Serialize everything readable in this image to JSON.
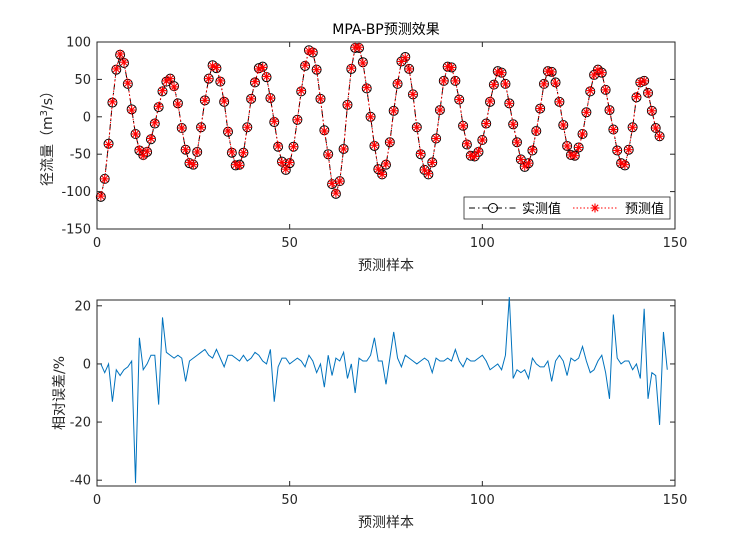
{
  "chart_data": [
    {
      "type": "line",
      "title": "MPA-BP预测效果",
      "xlabel": "预测样本",
      "ylabel": "径流量（m3/s）",
      "ylabel_parts": {
        "main": "径流量（m",
        "sup": "3",
        "end": "/s）"
      },
      "xlim": [
        0,
        150
      ],
      "ylim": [
        -150,
        100
      ],
      "xticks": [
        0,
        50,
        100,
        150
      ],
      "yticks": [
        -150,
        -100,
        -50,
        0,
        50,
        100
      ],
      "legend_position": "bottom-right",
      "series": [
        {
          "name": "实测值",
          "color": "#000000",
          "marker": "circle",
          "line": "dash-dot",
          "values": [
            -107,
            -83,
            -36,
            19,
            63,
            83,
            72,
            44,
            10,
            -23,
            -45,
            -51,
            -47,
            -30,
            -9,
            13,
            34,
            47,
            51,
            41,
            18,
            -15,
            -44,
            -62,
            -64,
            -47,
            -14,
            22,
            51,
            69,
            65,
            47,
            20,
            -20,
            -48,
            -65,
            -64,
            -48,
            -14,
            24,
            46,
            65,
            67,
            53,
            25,
            -7,
            -40,
            -60,
            -71,
            -62,
            -40,
            -4,
            34,
            68,
            89,
            86,
            63,
            24,
            -18,
            -50,
            -90,
            -103,
            -86,
            -43,
            16,
            64,
            92,
            92,
            73,
            38,
            0,
            -39,
            -70,
            -77,
            -64,
            -34,
            8,
            44,
            74,
            80,
            64,
            30,
            -14,
            -50,
            -71,
            -77,
            -61,
            -29,
            9,
            48,
            67,
            66,
            48,
            23,
            -12,
            -37,
            -52,
            -53,
            -47,
            -31,
            -9,
            20,
            43,
            61,
            59,
            44,
            18,
            -10,
            -34,
            -57,
            -67,
            -62,
            -45,
            -19,
            11,
            44,
            61,
            60,
            46,
            20,
            -11,
            -39,
            -51,
            -52,
            -41,
            -23,
            6,
            34,
            56,
            63,
            59,
            36,
            9,
            -17,
            -45,
            -62,
            -65,
            -44,
            -14,
            26,
            46,
            48,
            32,
            8,
            -15,
            -26
          ],
          "markers_every": 1
        },
        {
          "name": "预测值",
          "color": "#ff0000",
          "marker": "asterisk",
          "line": "dotted",
          "values": [
            -106,
            -83,
            -37,
            20,
            64,
            84,
            73,
            45,
            9,
            -23,
            -44,
            -52,
            -46,
            -29,
            -8,
            14,
            35,
            48,
            51,
            40,
            17,
            -15,
            -44,
            -61,
            -64,
            -47,
            -14,
            22,
            51,
            68,
            66,
            48,
            21,
            -19,
            -47,
            -64,
            -65,
            -48,
            -14,
            24,
            47,
            64,
            66,
            54,
            25,
            -6,
            -39,
            -61,
            -70,
            -61,
            -40,
            -4,
            35,
            69,
            88,
            87,
            63,
            24,
            -19,
            -51,
            -89,
            -102,
            -86,
            -43,
            16,
            65,
            93,
            93,
            72,
            39,
            0,
            -38,
            -70,
            -77,
            -63,
            -34,
            8,
            45,
            74,
            79,
            64,
            30,
            -14,
            -49,
            -71,
            -76,
            -61,
            -29,
            9,
            48,
            67,
            66,
            48,
            23,
            -12,
            -36,
            -52,
            -53,
            -46,
            -31,
            -9,
            21,
            43,
            60,
            59,
            44,
            18,
            -10,
            -34,
            -57,
            -66,
            -62,
            -44,
            -19,
            11,
            44,
            61,
            60,
            45,
            20,
            -11,
            -39,
            -51,
            -52,
            -41,
            -23,
            6,
            35,
            56,
            63,
            59,
            36,
            9,
            -17,
            -45,
            -62,
            -64,
            -44,
            -14,
            27,
            46,
            48,
            32,
            8,
            -15,
            -26
          ]
        }
      ]
    },
    {
      "type": "line",
      "title": "",
      "xlabel": "预测样本",
      "ylabel": "相对误差/%",
      "xlim": [
        0,
        150
      ],
      "ylim": [
        -42,
        22
      ],
      "xticks": [
        0,
        50,
        100,
        150
      ],
      "yticks": [
        -40,
        -20,
        0,
        20
      ],
      "series": [
        {
          "name": "",
          "color": "#0072bd",
          "values": [
            0,
            -3,
            0,
            -13,
            -2,
            -4,
            -2,
            -1,
            1,
            -41,
            9,
            -2,
            0,
            3,
            3,
            -14,
            16,
            4,
            3,
            2,
            3,
            2,
            -6,
            1,
            2,
            3,
            4,
            5,
            3,
            2,
            5,
            2,
            -1,
            3,
            3,
            2,
            1,
            3,
            1,
            2,
            4,
            3,
            1,
            0,
            5,
            -13,
            -1,
            2,
            2,
            0,
            1,
            2,
            1,
            -1,
            3,
            1,
            -3,
            0,
            -8,
            3,
            -4,
            2,
            1,
            4,
            -5,
            0,
            -10,
            2,
            1,
            1,
            3,
            9,
            1,
            1,
            -7,
            2,
            11,
            2,
            -1,
            3,
            2,
            1,
            0,
            1,
            2,
            1,
            -3,
            2,
            1,
            1,
            2,
            1,
            5,
            1,
            -1,
            2,
            1,
            1,
            2,
            3,
            1,
            -2,
            -1,
            0,
            -2,
            3,
            23,
            -5,
            -2,
            -3,
            -2,
            -5,
            2,
            0,
            -1,
            -1,
            1,
            -6,
            1,
            3,
            1,
            -4,
            2,
            1,
            2,
            6,
            1,
            -3,
            -2,
            1,
            3,
            -3,
            -12,
            17,
            2,
            0,
            1,
            1,
            -2,
            0,
            -5,
            19,
            -12,
            -3,
            -4,
            -21,
            11,
            -2
          ]
        }
      ]
    }
  ]
}
